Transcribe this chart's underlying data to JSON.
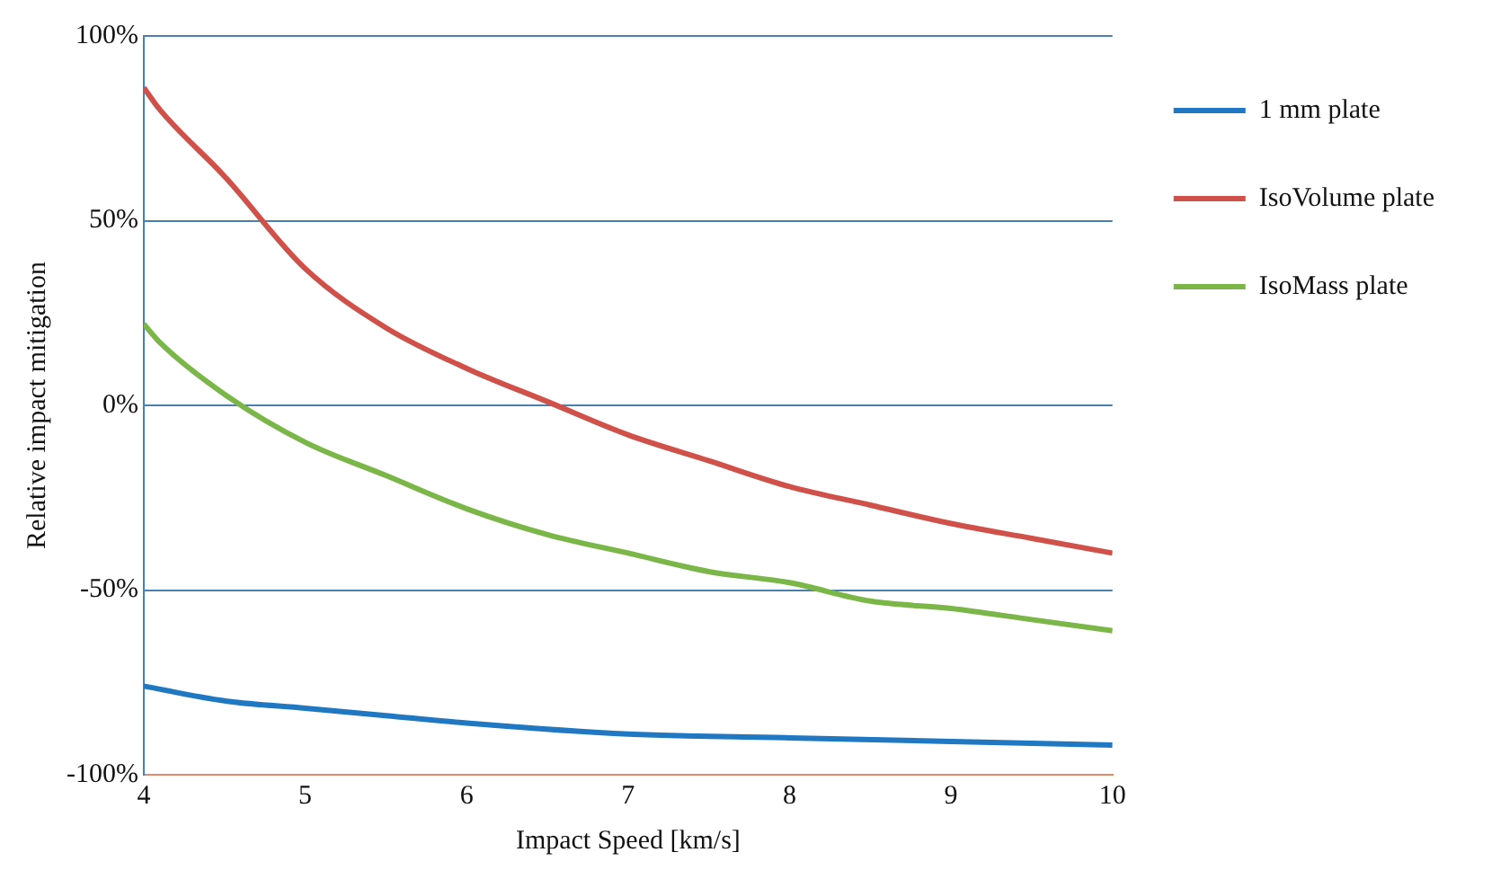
{
  "chart_data": {
    "type": "line",
    "xlabel": "Impact Speed [km/s]",
    "ylabel": "Relative impact mitigation",
    "xlim": [
      4,
      10
    ],
    "xticks": [
      4,
      5,
      6,
      7,
      8,
      9,
      10
    ],
    "ylim": [
      -100,
      100
    ],
    "yticks": [
      {
        "value": -100,
        "label": "-100%"
      },
      {
        "value": -50,
        "label": "-50%"
      },
      {
        "value": 0,
        "label": "0%"
      },
      {
        "value": 50,
        "label": "50%"
      },
      {
        "value": 100,
        "label": "100%"
      }
    ],
    "grid": "y",
    "legend": "right",
    "marker": "none",
    "line_style": "solid",
    "series": [
      {
        "name": "1 mm plate",
        "color": "#1f78c1",
        "x": [
          4,
          4.5,
          5,
          5.5,
          6,
          7,
          8,
          9,
          10
        ],
        "values": [
          -76,
          -80,
          -82,
          -84,
          -86,
          -89,
          -90,
          -91,
          -92
        ]
      },
      {
        "name": "IsoVolume plate",
        "color": "#d0504a",
        "x": [
          4,
          4.1,
          4.5,
          5,
          5.5,
          6,
          6.5,
          7,
          7.5,
          8,
          8.5,
          9,
          9.5,
          10
        ],
        "values": [
          86,
          80,
          62,
          37,
          21,
          10,
          1,
          -8,
          -15,
          -22,
          -27,
          -32,
          -36,
          -40
        ]
      },
      {
        "name": "IsoMass plate",
        "color": "#7ab648",
        "x": [
          4,
          4.1,
          4.5,
          5,
          5.5,
          6,
          6.5,
          7,
          7.5,
          8,
          8.5,
          9,
          9.5,
          10
        ],
        "values": [
          22,
          17,
          3,
          -10,
          -19,
          -28,
          -35,
          -40,
          -45,
          -48,
          -53,
          -55,
          -58,
          -61
        ]
      }
    ]
  }
}
